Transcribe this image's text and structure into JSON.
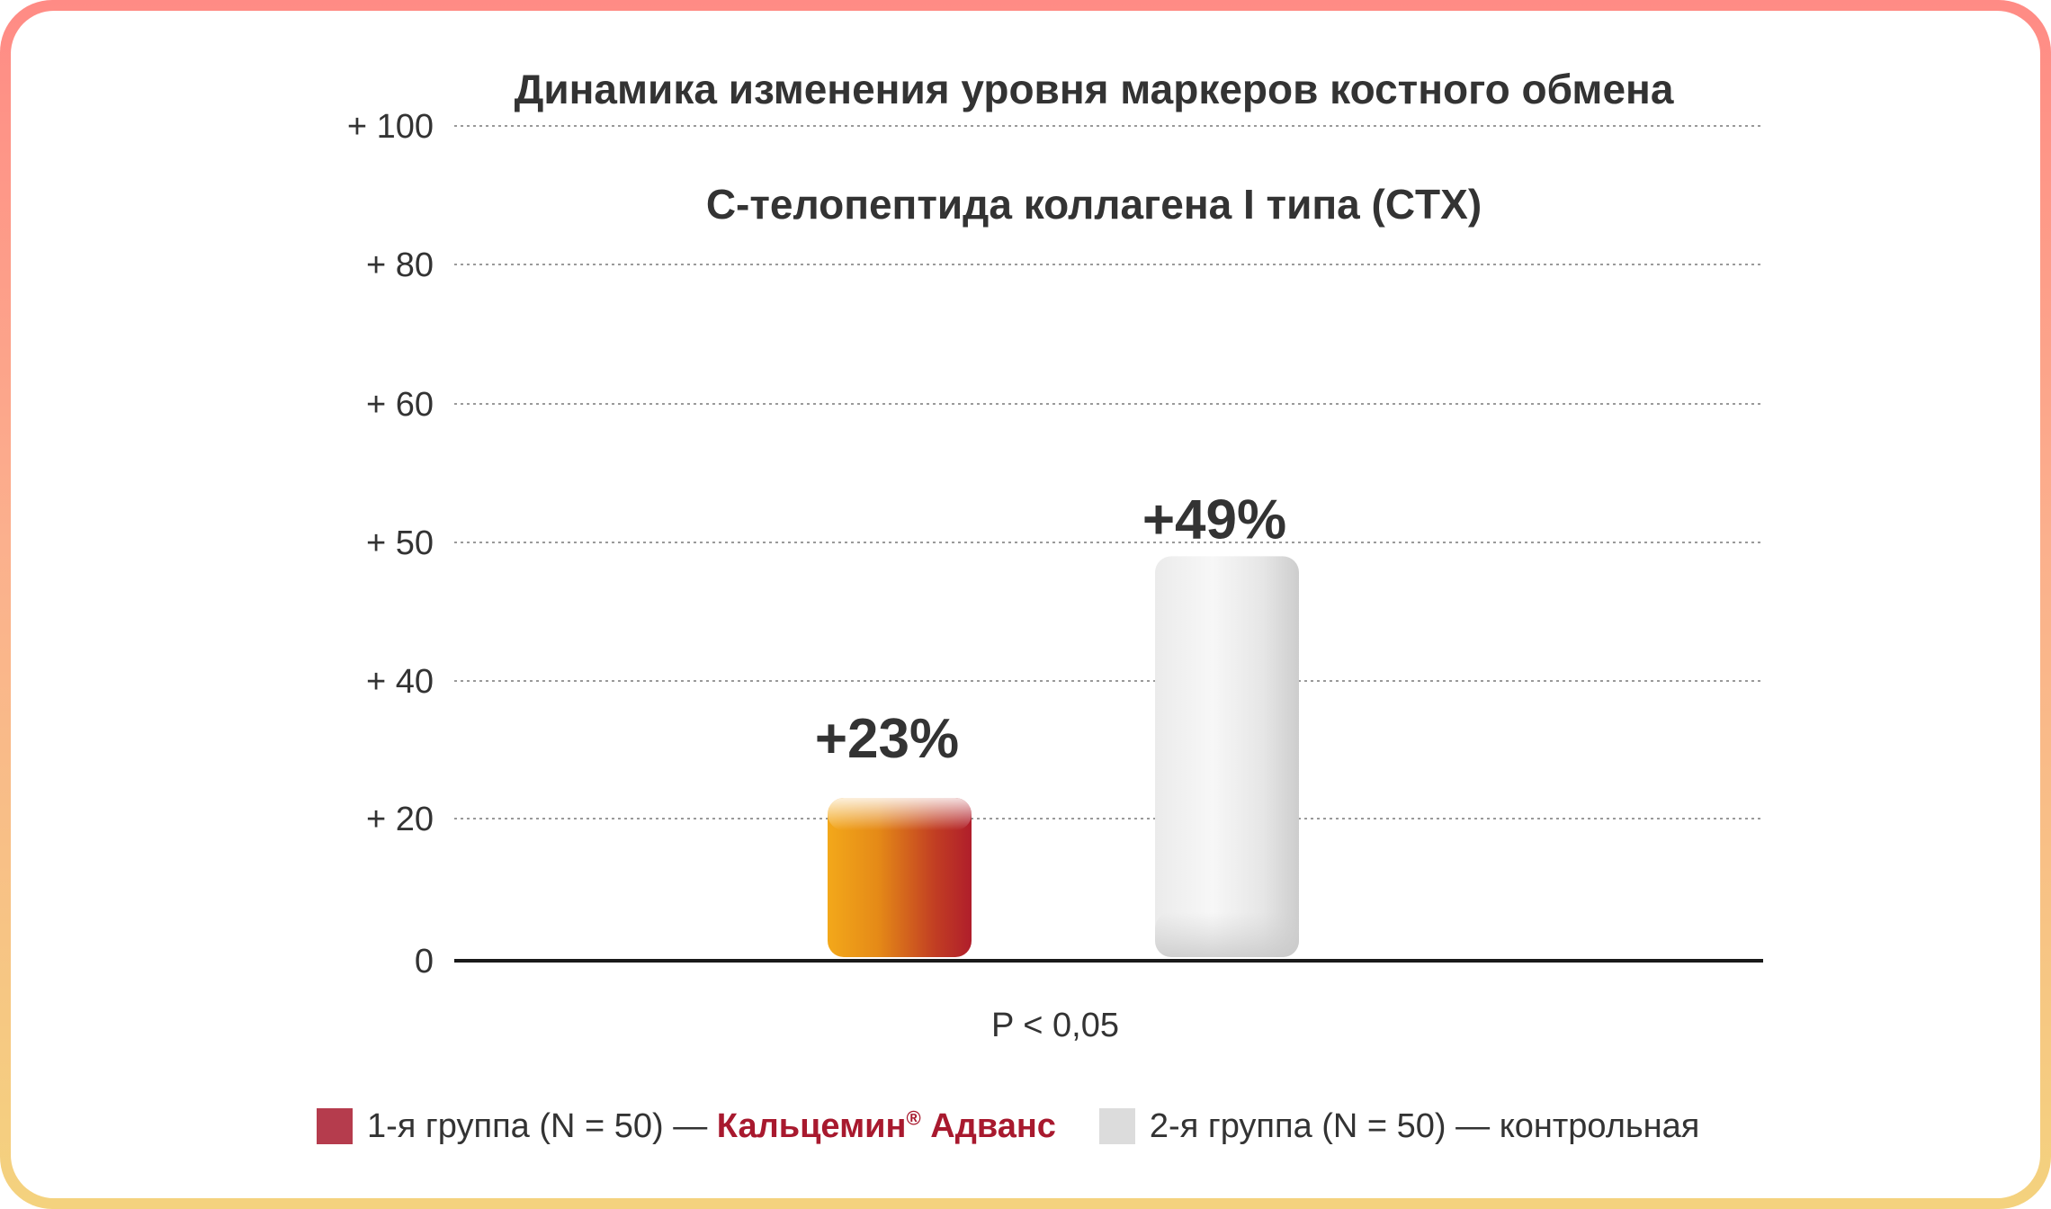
{
  "chart_data": {
    "type": "bar",
    "title": "Динамика изменения уровня маркеров костного обмена",
    "subtitle": "С-телопептида коллагена I типа (CTX)",
    "categories": [
      "1-я группа (N = 50)",
      "2-я группа (N = 50)"
    ],
    "values": [
      23,
      49
    ],
    "value_labels": [
      "+23%",
      "+49%"
    ],
    "y_ticks": [
      0,
      20,
      40,
      50,
      60,
      80,
      100
    ],
    "y_tick_labels": [
      "0",
      "+ 20",
      "+ 40",
      "+ 50",
      "+ 60",
      "+ 80",
      "+ 100"
    ],
    "ylim": [
      0,
      100
    ],
    "grid": true,
    "annotation": "P < 0,05",
    "legend_position": "bottom",
    "colors": {
      "group1_start": "#f3a81a",
      "group1_end": "#b5202a",
      "group1_legend": "#b53c4d",
      "group2": "#dcdcdc",
      "brand": "#a8192e"
    }
  },
  "legend": {
    "group1_prefix": "1-я группа (N = 50) — ",
    "group1_brand": "Кальцемин",
    "group1_mark": "®",
    "group1_suffix": " Адванс",
    "group2": "2-я группа (N = 50) — контрольная"
  }
}
